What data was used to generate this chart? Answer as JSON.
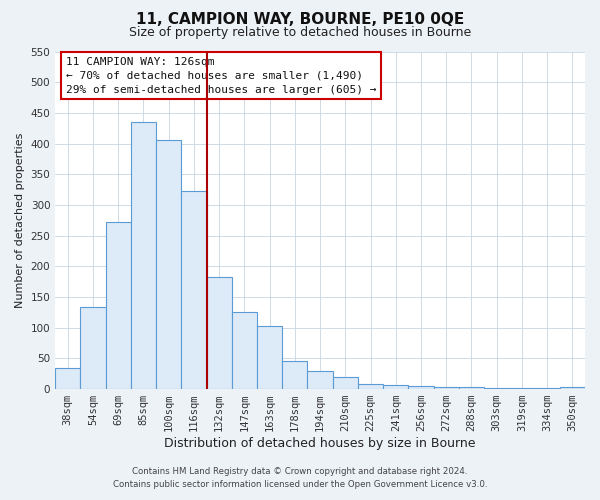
{
  "title": "11, CAMPION WAY, BOURNE, PE10 0QE",
  "subtitle": "Size of property relative to detached houses in Bourne",
  "xlabel": "Distribution of detached houses by size in Bourne",
  "ylabel": "Number of detached properties",
  "categories": [
    "38sqm",
    "54sqm",
    "69sqm",
    "85sqm",
    "100sqm",
    "116sqm",
    "132sqm",
    "147sqm",
    "163sqm",
    "178sqm",
    "194sqm",
    "210sqm",
    "225sqm",
    "241sqm",
    "256sqm",
    "272sqm",
    "288sqm",
    "303sqm",
    "319sqm",
    "334sqm",
    "350sqm"
  ],
  "values": [
    35,
    133,
    272,
    435,
    405,
    323,
    183,
    126,
    103,
    46,
    30,
    20,
    8,
    7,
    5,
    4,
    3,
    2,
    2,
    1,
    4
  ],
  "bar_face_color": "#ddeaf7",
  "bar_edge_color": "#5b9bd5",
  "ylim": [
    0,
    550
  ],
  "yticks": [
    0,
    50,
    100,
    150,
    200,
    250,
    300,
    350,
    400,
    450,
    500,
    550
  ],
  "property_index": 5,
  "annotation_title": "11 CAMPION WAY: 126sqm",
  "annotation_line1": "← 70% of detached houses are smaller (1,490)",
  "annotation_line2": "29% of semi-detached houses are larger (605) →",
  "footer1": "Contains HM Land Registry data © Crown copyright and database right 2024.",
  "footer2": "Contains public sector information licensed under the Open Government Licence v3.0.",
  "background_color": "#edf2f7",
  "plot_background": "#ffffff",
  "grid_color": "#c8d4e0",
  "vline_color": "#aa0000",
  "box_edge_color": "#cc0000",
  "title_fontsize": 11,
  "subtitle_fontsize": 9,
  "xlabel_fontsize": 9,
  "ylabel_fontsize": 8,
  "tick_fontsize": 7.5,
  "annot_fontsize": 8
}
